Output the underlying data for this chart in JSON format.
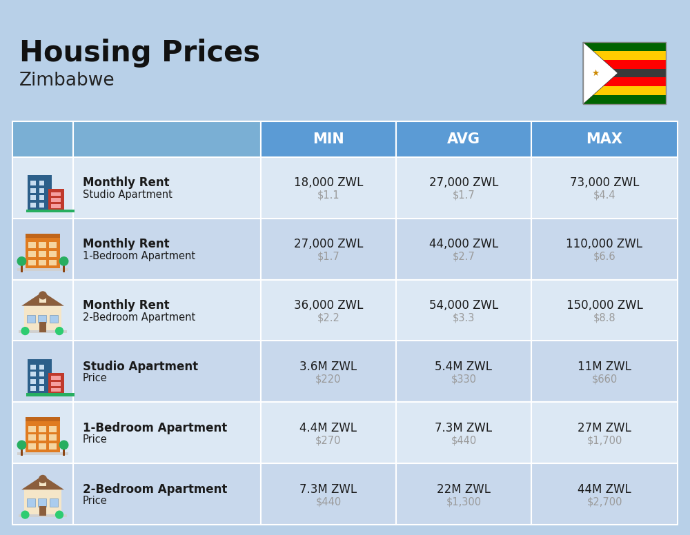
{
  "title": "Housing Prices",
  "subtitle": "Zimbabwe",
  "background_color": "#b8d0e8",
  "header_bg_color": "#5b9bd5",
  "header_text_color": "#ffffff",
  "row_bg_light": "#dce8f4",
  "row_bg_dark": "#c8d8ec",
  "header_col_bg": "#7aafd4",
  "text_color_dark": "#1a1a1a",
  "text_color_gray": "#9a9a9a",
  "col_headers": [
    "MIN",
    "AVG",
    "MAX"
  ],
  "rows": [
    {
      "icon": "city_blue",
      "label_bold": "Monthly Rent",
      "label_sub": "Studio Apartment",
      "min_zwl": "18,000 ZWL",
      "min_usd": "$1.1",
      "avg_zwl": "27,000 ZWL",
      "avg_usd": "$1.7",
      "max_zwl": "73,000 ZWL",
      "max_usd": "$4.4"
    },
    {
      "icon": "apt_orange",
      "label_bold": "Monthly Rent",
      "label_sub": "1-Bedroom Apartment",
      "min_zwl": "27,000 ZWL",
      "min_usd": "$1.7",
      "avg_zwl": "44,000 ZWL",
      "avg_usd": "$2.7",
      "max_zwl": "110,000 ZWL",
      "max_usd": "$6.6"
    },
    {
      "icon": "house_beige",
      "label_bold": "Monthly Rent",
      "label_sub": "2-Bedroom Apartment",
      "min_zwl": "36,000 ZWL",
      "min_usd": "$2.2",
      "avg_zwl": "54,000 ZWL",
      "avg_usd": "$3.3",
      "max_zwl": "150,000 ZWL",
      "max_usd": "$8.8"
    },
    {
      "icon": "city_blue",
      "label_bold": "Studio Apartment",
      "label_sub": "Price",
      "min_zwl": "3.6M ZWL",
      "min_usd": "$220",
      "avg_zwl": "5.4M ZWL",
      "avg_usd": "$330",
      "max_zwl": "11M ZWL",
      "max_usd": "$660"
    },
    {
      "icon": "apt_orange",
      "label_bold": "1-Bedroom Apartment",
      "label_sub": "Price",
      "min_zwl": "4.4M ZWL",
      "min_usd": "$270",
      "avg_zwl": "7.3M ZWL",
      "avg_usd": "$440",
      "max_zwl": "27M ZWL",
      "max_usd": "$1,700"
    },
    {
      "icon": "house_beige",
      "label_bold": "2-Bedroom Apartment",
      "label_sub": "Price",
      "min_zwl": "7.3M ZWL",
      "min_usd": "$440",
      "avg_zwl": "22M ZWL",
      "avg_usd": "$1,300",
      "max_zwl": "44M ZWL",
      "max_usd": "$2,700"
    }
  ]
}
